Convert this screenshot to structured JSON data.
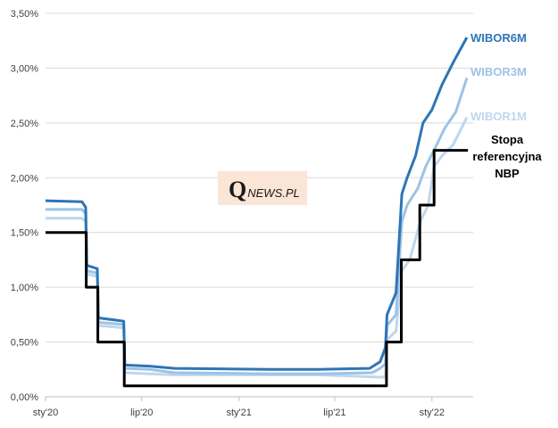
{
  "logo": {
    "q": "Q",
    "rest": "NEWS.PL"
  },
  "chart_data": {
    "type": "line",
    "title": "",
    "xlabel": "",
    "ylabel": "",
    "ylim": [
      0,
      3.5
    ],
    "xlim": [
      "2020-01-01",
      "2022-03-20"
    ],
    "y_ticks": [
      {
        "value": 0.0,
        "label": "0,00%"
      },
      {
        "value": 0.5,
        "label": "0,50%"
      },
      {
        "value": 1.0,
        "label": "1,00%"
      },
      {
        "value": 1.5,
        "label": "1,50%"
      },
      {
        "value": 2.0,
        "label": "2,00%"
      },
      {
        "value": 2.5,
        "label": "2,50%"
      },
      {
        "value": 3.0,
        "label": "3,00%"
      },
      {
        "value": 3.5,
        "label": "3,50%"
      }
    ],
    "x_ticks": [
      {
        "date": "2020-01-01",
        "label": "sty'20"
      },
      {
        "date": "2020-07-01",
        "label": "lip'20"
      },
      {
        "date": "2021-01-01",
        "label": "sty'21"
      },
      {
        "date": "2021-07-01",
        "label": "lip'21"
      },
      {
        "date": "2022-01-01",
        "label": "sty'22"
      }
    ],
    "grid": "horizontal",
    "series": [
      {
        "name": "Stopa referencyjna NBP",
        "label_lines": [
          "Stopa",
          "referencyjna",
          "NBP"
        ],
        "color": "#000000",
        "step": true,
        "points": [
          [
            "2020-01-01",
            1.5
          ],
          [
            "2020-03-18",
            1.0
          ],
          [
            "2020-04-09",
            0.5
          ],
          [
            "2020-05-29",
            0.1
          ],
          [
            "2021-10-07",
            0.5
          ],
          [
            "2021-11-04",
            1.25
          ],
          [
            "2021-12-09",
            1.75
          ],
          [
            "2022-01-05",
            2.25
          ],
          [
            "2022-03-10",
            2.25
          ]
        ]
      },
      {
        "name": "WIBOR1M",
        "color": "#bdd7ee",
        "step": false,
        "points": [
          [
            "2020-01-01",
            1.63
          ],
          [
            "2020-03-10",
            1.63
          ],
          [
            "2020-03-17",
            1.6
          ],
          [
            "2020-03-19",
            1.12
          ],
          [
            "2020-04-08",
            1.1
          ],
          [
            "2020-04-10",
            0.65
          ],
          [
            "2020-05-28",
            0.63
          ],
          [
            "2020-05-30",
            0.22
          ],
          [
            "2020-07-15",
            0.21
          ],
          [
            "2020-09-01",
            0.2
          ],
          [
            "2021-03-01",
            0.2
          ],
          [
            "2021-06-01",
            0.2
          ],
          [
            "2021-09-20",
            0.18
          ],
          [
            "2021-10-05",
            0.18
          ],
          [
            "2021-10-08",
            0.52
          ],
          [
            "2021-10-25",
            0.6
          ],
          [
            "2021-11-05",
            1.15
          ],
          [
            "2021-11-20",
            1.25
          ],
          [
            "2021-12-10",
            1.6
          ],
          [
            "2021-12-25",
            1.75
          ],
          [
            "2022-01-05",
            2.1
          ],
          [
            "2022-01-20",
            2.2
          ],
          [
            "2022-02-10",
            2.3
          ],
          [
            "2022-03-08",
            2.55
          ]
        ]
      },
      {
        "name": "WIBOR3M",
        "color": "#9dc3e6",
        "step": false,
        "points": [
          [
            "2020-01-01",
            1.71
          ],
          [
            "2020-03-10",
            1.71
          ],
          [
            "2020-03-17",
            1.67
          ],
          [
            "2020-03-19",
            1.15
          ],
          [
            "2020-04-08",
            1.13
          ],
          [
            "2020-04-10",
            0.68
          ],
          [
            "2020-05-28",
            0.66
          ],
          [
            "2020-05-30",
            0.26
          ],
          [
            "2020-07-15",
            0.25
          ],
          [
            "2020-09-01",
            0.22
          ],
          [
            "2021-03-01",
            0.21
          ],
          [
            "2021-06-01",
            0.21
          ],
          [
            "2021-09-10",
            0.22
          ],
          [
            "2021-09-25",
            0.26
          ],
          [
            "2021-10-05",
            0.3
          ],
          [
            "2021-10-08",
            0.65
          ],
          [
            "2021-10-25",
            0.75
          ],
          [
            "2021-11-05",
            1.6
          ],
          [
            "2021-11-15",
            1.75
          ],
          [
            "2021-12-05",
            1.9
          ],
          [
            "2021-12-20",
            2.1
          ],
          [
            "2022-01-10",
            2.3
          ],
          [
            "2022-01-25",
            2.45
          ],
          [
            "2022-02-15",
            2.6
          ],
          [
            "2022-03-08",
            2.91
          ]
        ]
      },
      {
        "name": "WIBOR6M",
        "color": "#2e75b6",
        "step": false,
        "points": [
          [
            "2020-01-01",
            1.79
          ],
          [
            "2020-03-10",
            1.78
          ],
          [
            "2020-03-17",
            1.73
          ],
          [
            "2020-03-19",
            1.2
          ],
          [
            "2020-04-08",
            1.17
          ],
          [
            "2020-04-10",
            0.72
          ],
          [
            "2020-05-28",
            0.69
          ],
          [
            "2020-05-30",
            0.29
          ],
          [
            "2020-07-15",
            0.28
          ],
          [
            "2020-09-01",
            0.26
          ],
          [
            "2021-03-01",
            0.25
          ],
          [
            "2021-06-01",
            0.25
          ],
          [
            "2021-09-05",
            0.26
          ],
          [
            "2021-09-25",
            0.32
          ],
          [
            "2021-10-05",
            0.45
          ],
          [
            "2021-10-08",
            0.75
          ],
          [
            "2021-10-25",
            0.95
          ],
          [
            "2021-11-05",
            1.85
          ],
          [
            "2021-11-15",
            2.0
          ],
          [
            "2021-12-01",
            2.2
          ],
          [
            "2021-12-15",
            2.5
          ],
          [
            "2022-01-01",
            2.62
          ],
          [
            "2022-01-20",
            2.85
          ],
          [
            "2022-02-10",
            3.05
          ],
          [
            "2022-03-08",
            3.28
          ]
        ]
      }
    ]
  }
}
